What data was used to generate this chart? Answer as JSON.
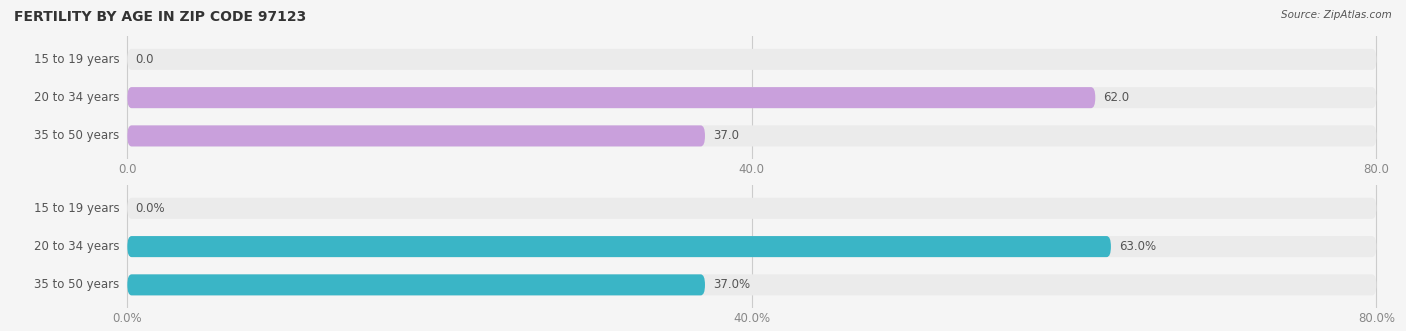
{
  "title": "FERTILITY BY AGE IN ZIP CODE 97123",
  "source": "Source: ZipAtlas.com",
  "top_chart": {
    "categories": [
      "15 to 19 years",
      "20 to 34 years",
      "35 to 50 years"
    ],
    "values": [
      0.0,
      62.0,
      37.0
    ],
    "bar_color": "#c9a0dc",
    "bar_bg_color": "#ebebeb",
    "xlim": [
      0,
      80
    ],
    "xticks": [
      0.0,
      40.0,
      80.0
    ],
    "xlabel_format": "{}"
  },
  "bottom_chart": {
    "categories": [
      "15 to 19 years",
      "20 to 34 years",
      "35 to 50 years"
    ],
    "values": [
      0.0,
      63.0,
      37.0
    ],
    "bar_color": "#3ab5c6",
    "bar_bg_color": "#ebebeb",
    "xlim": [
      0,
      80
    ],
    "xticks": [
      0.0,
      40.0,
      80.0
    ],
    "xlabel_format": "{}%"
  },
  "label_fontsize": 8.5,
  "value_fontsize": 8.5,
  "title_fontsize": 10,
  "source_fontsize": 7.5,
  "bar_height": 0.55,
  "label_color": "#555555",
  "title_color": "#333333",
  "bg_color": "#f5f5f5",
  "bar_bg_alpha": 1.0,
  "tick_color": "#888888",
  "grid_color": "#cccccc"
}
